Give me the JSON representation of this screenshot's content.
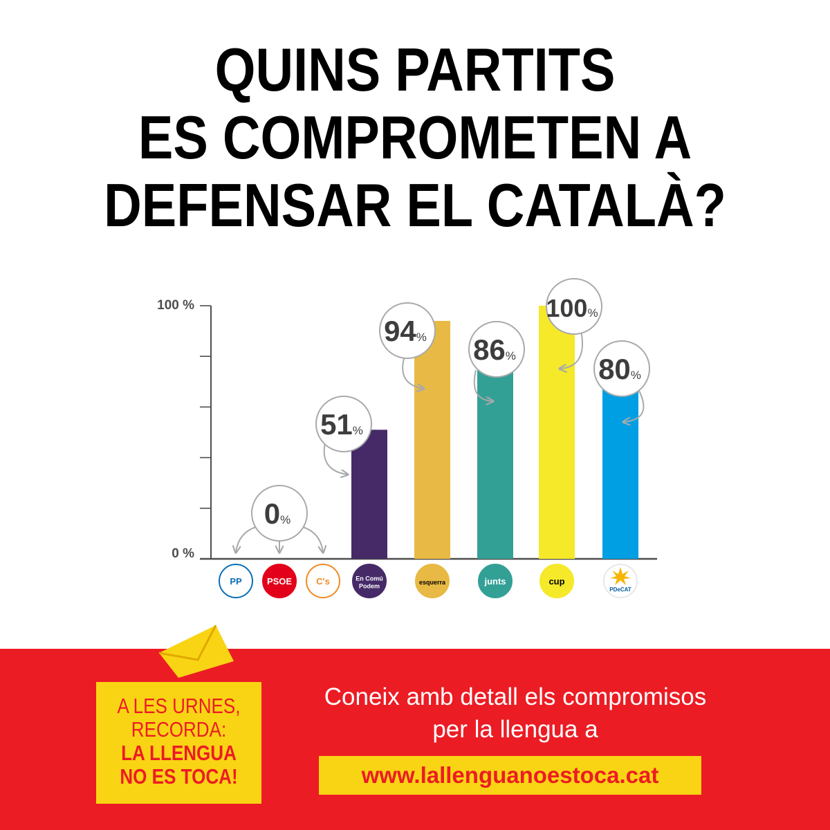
{
  "title_lines": [
    "QUINS PARTITS",
    "ES COMPROMETEN A",
    "DEFENSAR EL CATALÀ?"
  ],
  "chart_data": {
    "type": "bar",
    "categories": [
      "PP",
      "PSOE",
      "C's",
      "En Comú Podem",
      "esquerra",
      "junts",
      "cup",
      "PDeCAT"
    ],
    "values": [
      0,
      0,
      0,
      51,
      94,
      86,
      100,
      80
    ],
    "ylim": [
      0,
      100
    ],
    "ytick_labels": [
      "0 %",
      "100 %"
    ],
    "colors": [
      "#0a6fb5",
      "#d81e2c",
      "#f08a24",
      "#462a68",
      "#e8b944",
      "#33a096",
      "#f5e92a",
      "#009fe3"
    ],
    "shared_label": {
      "value": "0",
      "unit": "%"
    },
    "value_labels": [
      {
        "value": "51",
        "unit": "%"
      },
      {
        "value": "94",
        "unit": "%"
      },
      {
        "value": "86",
        "unit": "%"
      },
      {
        "value": "100",
        "unit": "%"
      },
      {
        "value": "80",
        "unit": "%"
      }
    ],
    "logo_texts": [
      [
        "PP"
      ],
      [
        "PSOE"
      ],
      [
        "C's"
      ],
      [
        "En Comú",
        "Podem"
      ],
      [
        "esquerra"
      ],
      [
        "junts"
      ],
      [
        "cup"
      ],
      [
        "PDeCAT"
      ]
    ]
  },
  "footer": {
    "slogan_lines": [
      "A LES URNES,",
      "RECORDA:",
      "LA LLENGUA",
      "NO ES TOCA!"
    ],
    "cta_lines": [
      "Coneix amb detall els compromisos",
      "per la llengua a"
    ],
    "url": "www.lallenguanoestoca.cat"
  }
}
